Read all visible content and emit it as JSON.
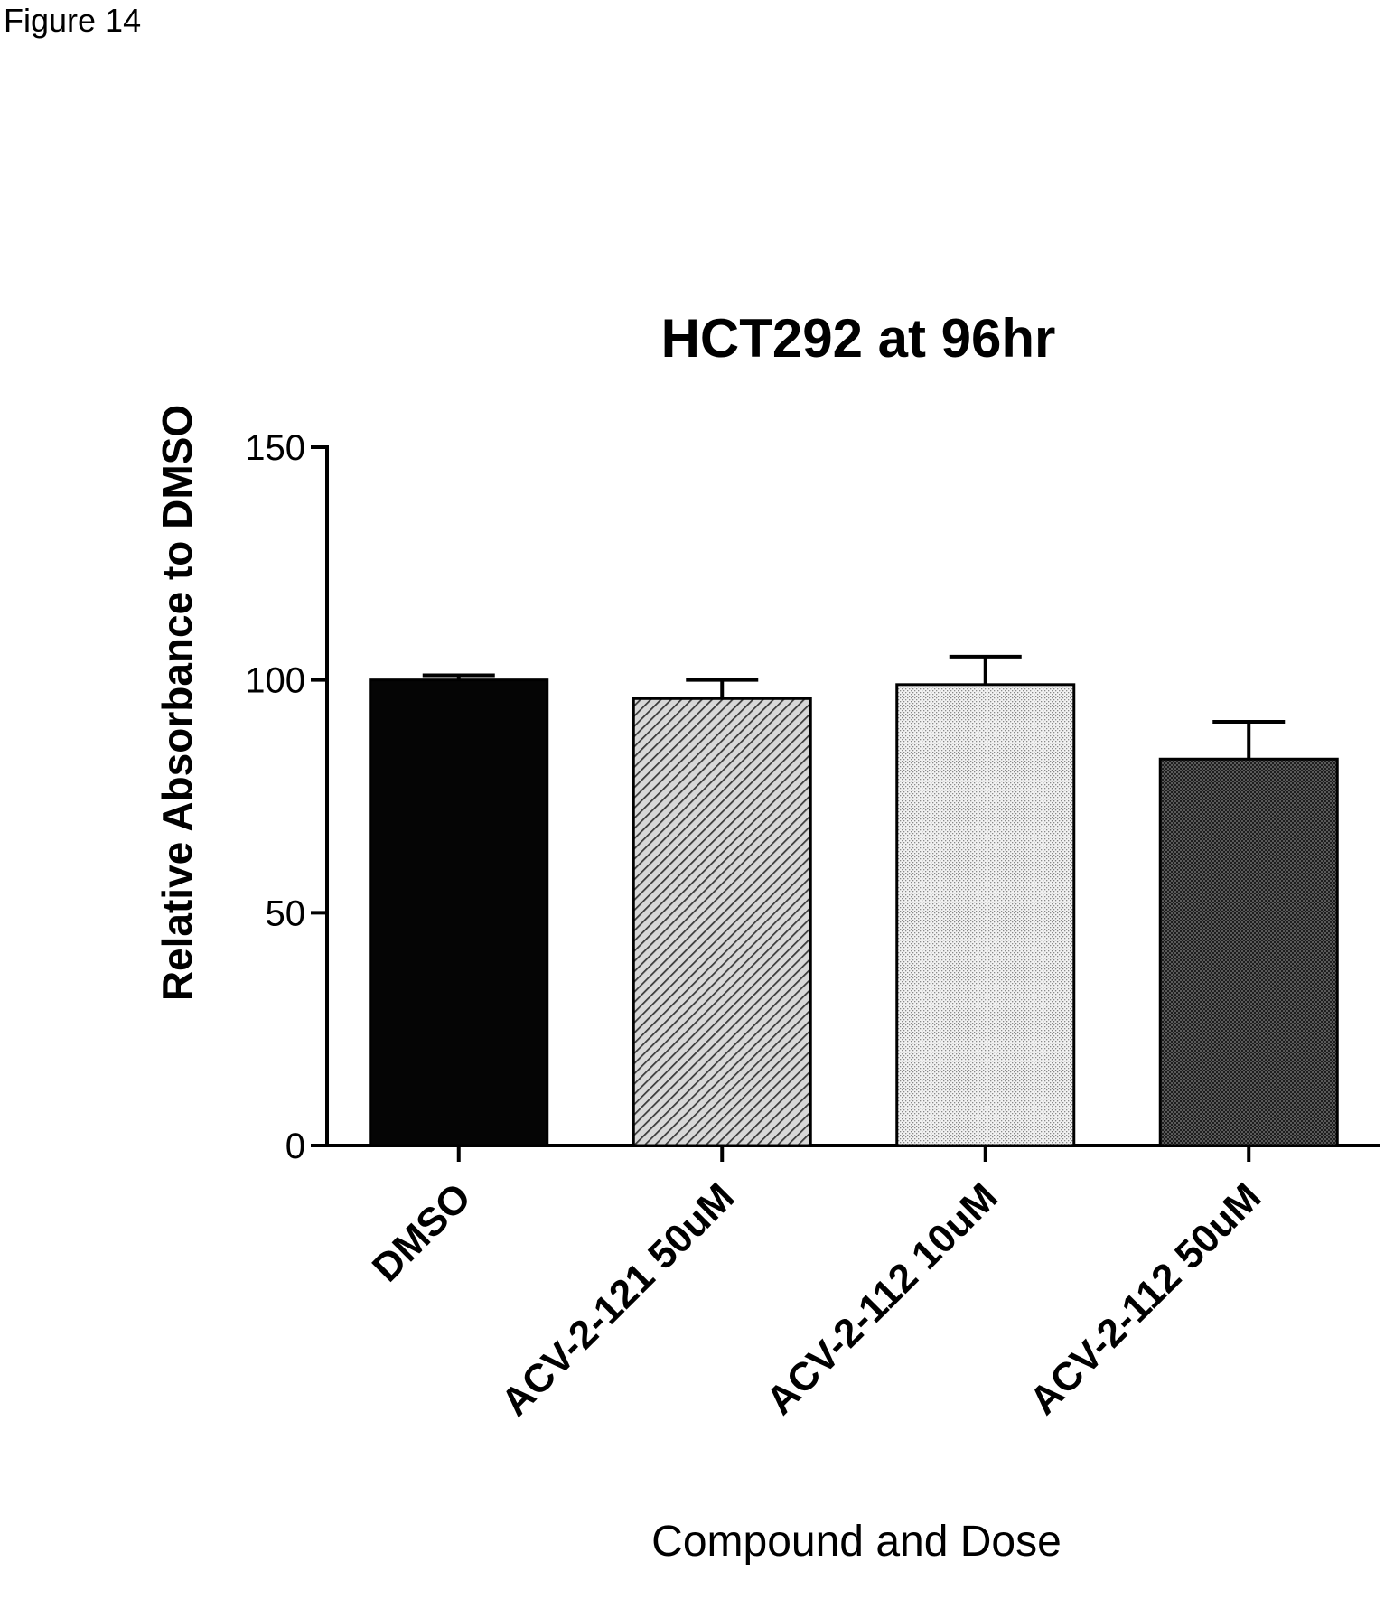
{
  "figure_label": "Figure 14",
  "chart_data": {
    "type": "bar",
    "title": "HCT292 at 96hr",
    "xlabel": "Compound and Dose",
    "ylabel": "Relative Absorbance to DMSO",
    "categories": [
      "DMSO",
      "ACV-2-121 50uM",
      "ACV-2-112 10uM",
      "ACV-2-112 50uM"
    ],
    "values": [
      100,
      96,
      99,
      83
    ],
    "errors": [
      1,
      4,
      6,
      8
    ],
    "ylim": [
      0,
      150
    ],
    "yticks": [
      0,
      50,
      100,
      150
    ],
    "fills": [
      "solid-black",
      "diagonal-hatch",
      "light-dots",
      "dark-dots"
    ],
    "grid": false
  }
}
